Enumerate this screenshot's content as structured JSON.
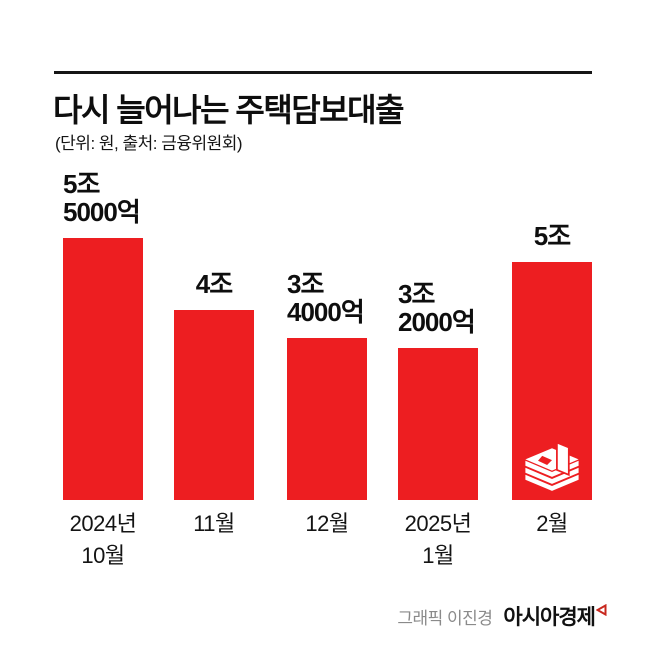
{
  "header": {
    "title": "다시 늘어나는 주택담보대출",
    "subtitle": "(단위: 원, 출처: 금융위원회)"
  },
  "chart_data": {
    "type": "bar",
    "title": "다시 늘어나는 주택담보대출",
    "unit_note": "(단위: 원, 출처: 금융위원회)",
    "categories": [
      "2024년 10월",
      "11월",
      "12월",
      "2025년 1월",
      "2월"
    ],
    "category_lines": [
      [
        "2024년",
        "10월"
      ],
      [
        "11월"
      ],
      [
        "12월"
      ],
      [
        "2025년",
        "1월"
      ],
      [
        "2월"
      ]
    ],
    "values": [
      5.5,
      4,
      3.4,
      3.2,
      5
    ],
    "unit": "조 원",
    "value_labels": [
      "5조\n5000억",
      "4조",
      "3조\n4000억",
      "3조\n2000억",
      "5조"
    ],
    "bar_color": "#ed1e21",
    "ylim": [
      0,
      5.5
    ],
    "grid": false,
    "legend": false,
    "icon": "cash-bundle-icon",
    "icon_bar_index": 4
  },
  "footer": {
    "credit": "그래픽 이진경",
    "brand": "아시아경제"
  },
  "colors": {
    "bar_red": "#ed1e21",
    "text_black": "#0e0e0e",
    "credit_gray": "#8a8a8a",
    "brand_mark_red": "#c8281e"
  }
}
